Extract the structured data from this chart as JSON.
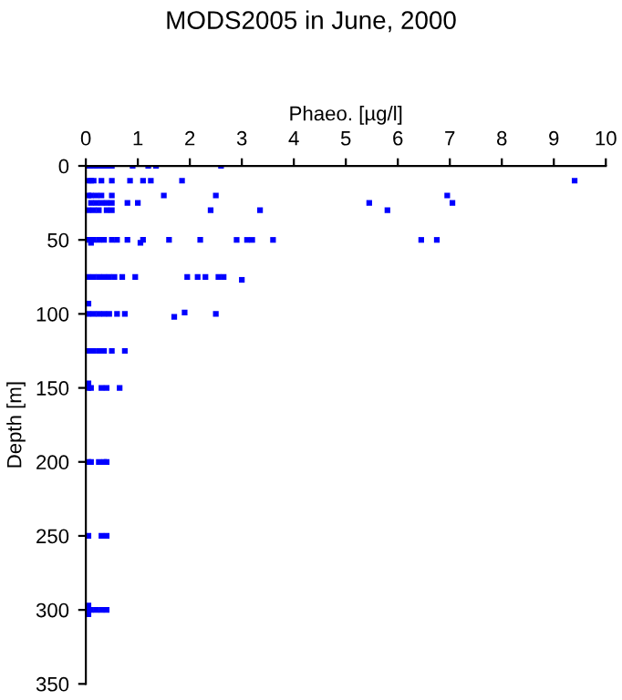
{
  "chart_data": {
    "type": "scatter",
    "title": "MODS2005 in June, 2000",
    "xlabel": "Phaeo. [µg/l]",
    "ylabel": "Depth [m]",
    "xlim": [
      0,
      10
    ],
    "xticks": [
      0,
      1,
      2,
      3,
      4,
      5,
      6,
      7,
      8,
      9,
      10
    ],
    "ylim": [
      350,
      0
    ],
    "yticks": [
      0,
      50,
      100,
      150,
      200,
      250,
      300,
      350
    ],
    "grid": false,
    "marker": "square",
    "series": [
      {
        "color": "#0000ff",
        "x": [
          0.05,
          0.1,
          0.2,
          0.3,
          0.4,
          0.5,
          0.9,
          1.2,
          1.35,
          2.6,
          0.05,
          0.1,
          0.15,
          0.3,
          0.5,
          0.85,
          1.1,
          1.25,
          1.85,
          9.4,
          0.05,
          0.1,
          0.2,
          0.3,
          0.5,
          1.5,
          2.5,
          6.95,
          0.1,
          0.2,
          0.3,
          0.4,
          0.5,
          0.8,
          1.0,
          5.45,
          7.05,
          0.05,
          0.15,
          0.25,
          0.4,
          0.5,
          2.4,
          3.35,
          5.8,
          0.05,
          0.15,
          0.25,
          0.35,
          0.5,
          0.6,
          0.8,
          1.1,
          1.6,
          2.2,
          2.9,
          3.1,
          3.2,
          3.6,
          6.45,
          6.75,
          0.1,
          1.05,
          0.05,
          0.15,
          0.25,
          0.35,
          0.45,
          0.55,
          0.7,
          0.95,
          1.95,
          2.15,
          2.3,
          2.55,
          2.65,
          3.0,
          0.05,
          0.05,
          0.15,
          0.25,
          0.35,
          0.45,
          0.6,
          0.75,
          1.7,
          1.9,
          2.5,
          0.05,
          0.15,
          0.25,
          0.35,
          0.5,
          0.75,
          0.05,
          0.05,
          0.1,
          0.3,
          0.4,
          0.65,
          0.05,
          0.1,
          0.25,
          0.35,
          0.4,
          0.05,
          0.3,
          0.4,
          0.05,
          0.05,
          0.1,
          0.2,
          0.3,
          0.4,
          0.05
        ],
        "values": [
          0,
          0,
          0,
          0,
          0,
          0,
          0,
          0,
          0,
          0,
          10,
          10,
          10,
          10,
          10,
          10,
          10,
          10,
          10,
          10,
          20,
          20,
          20,
          20,
          20,
          20,
          20,
          20,
          25,
          25,
          25,
          25,
          25,
          25,
          25,
          25,
          25,
          30,
          30,
          30,
          30,
          30,
          30,
          30,
          30,
          50,
          50,
          50,
          50,
          50,
          50,
          50,
          50,
          50,
          50,
          50,
          50,
          50,
          50,
          50,
          50,
          52,
          52,
          75,
          75,
          75,
          75,
          75,
          75,
          75,
          75,
          75,
          75,
          75,
          75,
          75,
          77,
          93,
          100,
          100,
          100,
          100,
          100,
          100,
          100,
          102,
          99,
          100,
          125,
          125,
          125,
          125,
          125,
          125,
          147,
          150,
          150,
          150,
          150,
          150,
          200,
          200,
          200,
          200,
          200,
          250,
          250,
          250,
          297,
          300,
          300,
          300,
          300,
          300,
          303
        ]
      }
    ]
  }
}
